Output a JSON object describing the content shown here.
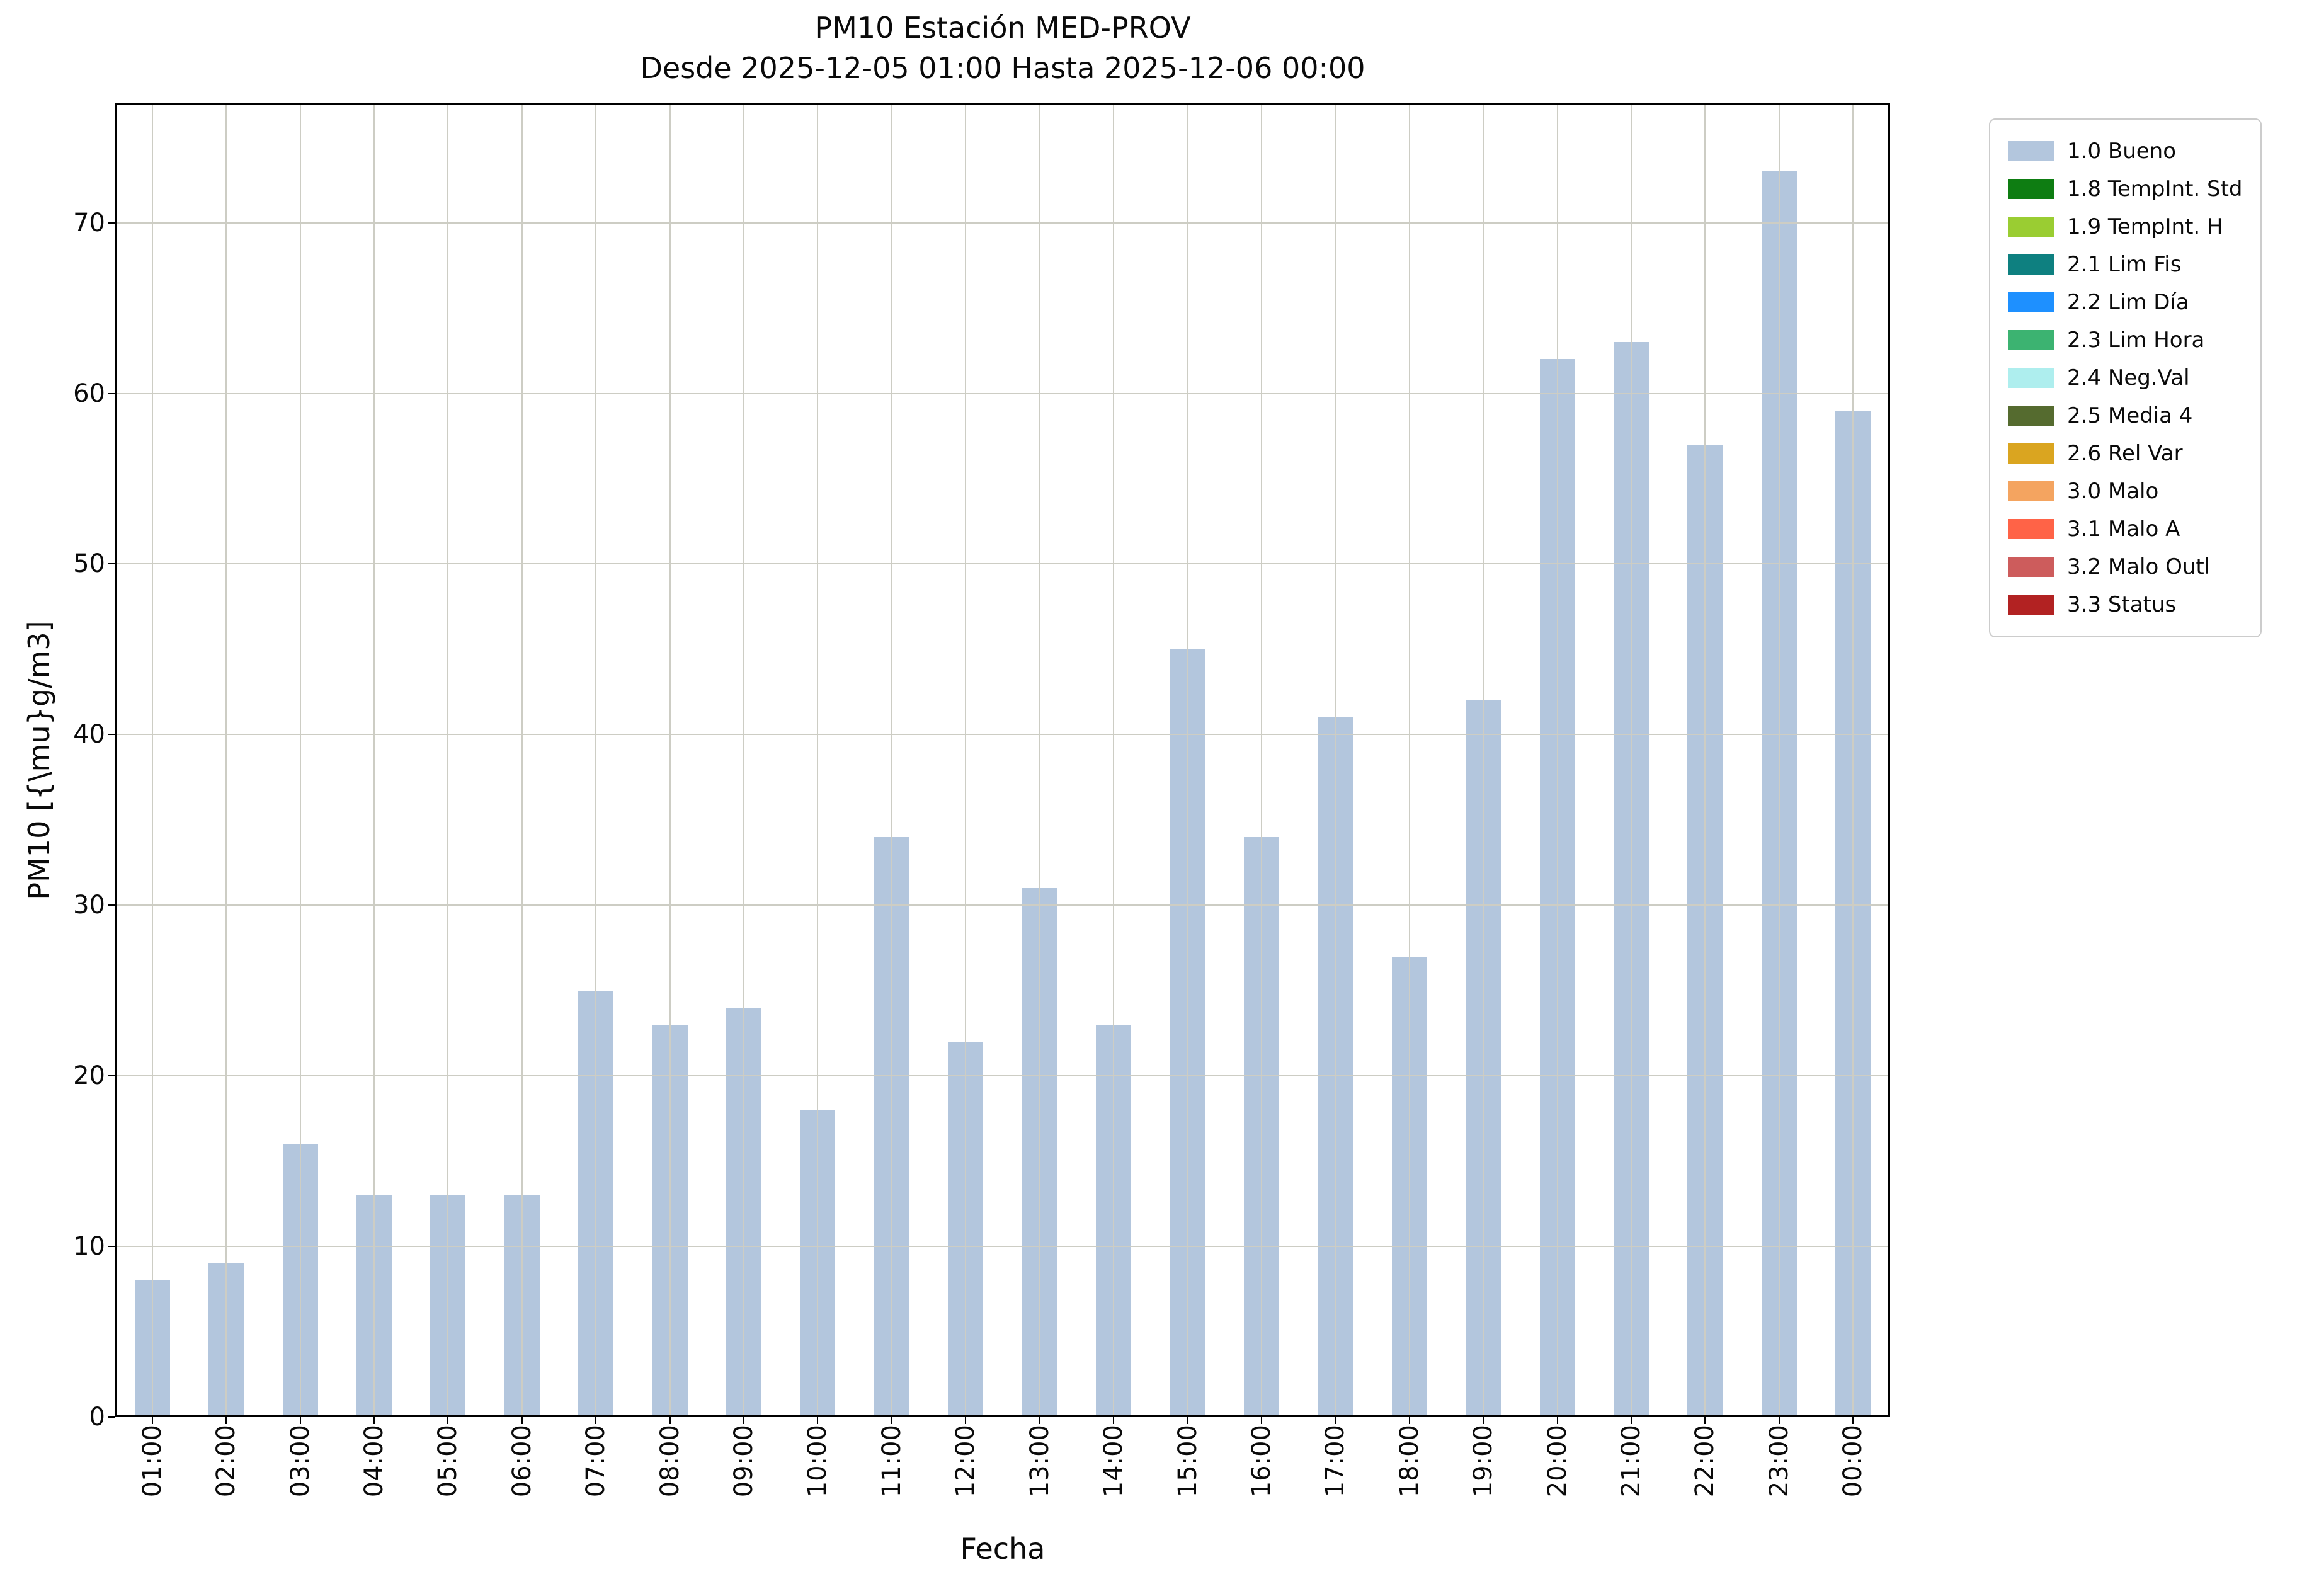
{
  "chart_data": {
    "type": "bar",
    "title": "PM10 Estación MED-PROV",
    "subtitle": "Desde 2025-12-05 01:00 Hasta 2025-12-06 00:00",
    "xlabel": "Fecha",
    "ylabel": "PM10 [{\\mu}g/m3]",
    "categories": [
      "01:00",
      "02:00",
      "03:00",
      "04:00",
      "05:00",
      "06:00",
      "07:00",
      "08:00",
      "09:00",
      "10:00",
      "11:00",
      "12:00",
      "13:00",
      "14:00",
      "15:00",
      "16:00",
      "17:00",
      "18:00",
      "19:00",
      "20:00",
      "21:00",
      "22:00",
      "23:00",
      "00:00"
    ],
    "values": [
      8,
      9,
      16,
      13,
      13,
      13,
      25,
      23,
      24,
      18,
      34,
      22,
      31,
      23,
      45,
      34,
      41,
      27,
      42,
      62,
      63,
      57,
      73,
      59
    ],
    "ylim": [
      0,
      77
    ],
    "yticks": [
      0,
      10,
      20,
      30,
      40,
      50,
      60,
      70
    ],
    "grid": true,
    "bar_color": "#b3c6dd",
    "grid_color": "#cdcdc4",
    "legend_position": "outside upper right",
    "legend": [
      {
        "label": "1.0 Bueno",
        "color": "#b3c6dd"
      },
      {
        "label": "1.8 TempInt. Std",
        "color": "#0e7d12"
      },
      {
        "label": "1.9 TempInt. H",
        "color": "#9acd32"
      },
      {
        "label": "2.1 Lim Fis",
        "color": "#0e8080"
      },
      {
        "label": "2.2 Lim Día",
        "color": "#1e90ff"
      },
      {
        "label": "2.3 Lim Hora",
        "color": "#3cb371"
      },
      {
        "label": "2.4 Neg.Val",
        "color": "#aeeeee"
      },
      {
        "label": "2.5 Media 4",
        "color": "#556b2f"
      },
      {
        "label": "2.6 Rel Var",
        "color": "#daa520"
      },
      {
        "label": "3.0 Malo",
        "color": "#f4a460"
      },
      {
        "label": "3.1 Malo A",
        "color": "#ff6347"
      },
      {
        "label": "3.2 Malo Outl",
        "color": "#cd5c5c"
      },
      {
        "label": "3.3 Status",
        "color": "#b22222"
      }
    ]
  }
}
